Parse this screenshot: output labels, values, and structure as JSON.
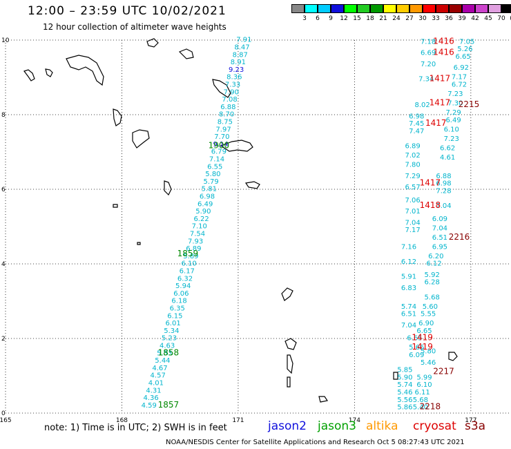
{
  "title": "12:00 – 23:59 UTC 10/02/2021",
  "subtitle": "12 hour collection of altimeter wave heights",
  "note": "note:  1) Time is in UTC;  2) SWH is in feet",
  "credit": "NOAA/NESDIS Center for Satellite Applications and Research    Oct  5 08:27:43 UTC 2021",
  "satellites": [
    {
      "name": "jason2",
      "color": "#1010dd"
    },
    {
      "name": "jason3",
      "color": "#00a000"
    },
    {
      "name": "altika",
      "color": "#ff9900"
    },
    {
      "name": "cryosat",
      "color": "#dd0000"
    },
    {
      "name": "s3a",
      "color": "#880000"
    }
  ],
  "colorbar": {
    "labels": [
      "3",
      "6",
      "9",
      "12",
      "15",
      "18",
      "21",
      "24",
      "27",
      "30",
      "33",
      "36",
      "39",
      "42",
      "45",
      "70",
      "(ft)"
    ],
    "colors": [
      "#888888",
      "#00ffff",
      "#00ccff",
      "#1010dd",
      "#00ff00",
      "#22cc22",
      "#009900",
      "#ffff00",
      "#ffcc00",
      "#ff9900",
      "#ff0000",
      "#cc0000",
      "#990000",
      "#aa00aa",
      "#cc44cc",
      "#e0a0e0",
      "#000000"
    ]
  },
  "chart_data": {
    "type": "scatter",
    "title": "12:00 – 23:59 UTC 10/02/2021",
    "subtitle": "12 hour collection of altimeter wave heights",
    "xlabel": "",
    "ylabel": "",
    "xlim": [
      165,
      178
    ],
    "ylim": [
      0,
      10
    ],
    "xticks": [
      "165",
      "168",
      "171",
      "174",
      "177"
    ],
    "yticks": [
      "0",
      "2",
      "4",
      "6",
      "8",
      "10"
    ],
    "grid": true,
    "unit": "ft",
    "series": [
      {
        "name": "jason3",
        "points": [
          [
            168.7,
            0.15,
            "4.59"
          ],
          [
            168.75,
            0.35,
            "4.36"
          ],
          [
            168.82,
            0.55,
            "4.31"
          ],
          [
            168.88,
            0.75,
            "4.01"
          ],
          [
            168.93,
            0.95,
            "4.57"
          ],
          [
            168.98,
            1.15,
            "4.67"
          ],
          [
            169.05,
            1.35,
            "5.44"
          ],
          [
            169.1,
            1.55,
            "5.53"
          ],
          [
            169.17,
            1.75,
            "4.63"
          ],
          [
            169.22,
            1.95,
            "5.23"
          ],
          [
            169.28,
            2.15,
            "5.34"
          ],
          [
            169.32,
            2.35,
            "6.01"
          ],
          [
            169.37,
            2.55,
            "6.15"
          ],
          [
            169.43,
            2.75,
            "6.35"
          ],
          [
            169.48,
            2.95,
            "6.18"
          ],
          [
            169.53,
            3.15,
            "6.06"
          ],
          [
            169.58,
            3.35,
            "5.94"
          ],
          [
            169.63,
            3.55,
            "6.32"
          ],
          [
            169.68,
            3.75,
            "6.17"
          ],
          [
            169.73,
            3.95,
            "6.10"
          ],
          [
            169.78,
            4.15,
            "5.89"
          ],
          [
            169.85,
            4.35,
            "6.89"
          ],
          [
            169.9,
            4.55,
            "7.93"
          ],
          [
            169.95,
            4.75,
            "7.54"
          ],
          [
            170.0,
            4.95,
            "7.10"
          ],
          [
            170.05,
            5.15,
            "6.22"
          ],
          [
            170.1,
            5.35,
            "5.90"
          ],
          [
            170.15,
            5.55,
            "6.49"
          ],
          [
            170.2,
            5.75,
            "6.98"
          ],
          [
            170.25,
            5.95,
            "5.81"
          ],
          [
            170.3,
            6.15,
            "5.79"
          ],
          [
            170.35,
            6.35,
            "5.80"
          ],
          [
            170.4,
            6.55,
            "6.55"
          ],
          [
            170.45,
            6.75,
            "7.14"
          ],
          [
            170.5,
            6.95,
            "6.79"
          ],
          [
            170.55,
            7.15,
            "9.14"
          ],
          [
            170.58,
            7.35,
            "7.70"
          ],
          [
            170.62,
            7.55,
            "7.97"
          ],
          [
            170.66,
            7.75,
            "8.75"
          ],
          [
            170.7,
            7.95,
            "8.70"
          ],
          [
            170.74,
            8.15,
            "6.88"
          ],
          [
            170.78,
            8.35,
            "7.08"
          ],
          [
            170.82,
            8.55,
            "7.90"
          ],
          [
            170.86,
            8.75,
            "7.33"
          ],
          [
            170.9,
            8.95,
            "8.36"
          ],
          [
            170.95,
            9.15,
            "9.23"
          ],
          [
            171.0,
            9.35,
            "8.91"
          ],
          [
            171.05,
            9.55,
            "8.87"
          ],
          [
            171.1,
            9.75,
            "8.47"
          ],
          [
            171.15,
            9.95,
            "7.91"
          ]
        ],
        "time_labels": [
          [
            169.2,
            0.15,
            "1857"
          ],
          [
            169.2,
            1.55,
            "1858"
          ],
          [
            169.7,
            4.2,
            "1859"
          ],
          [
            170.5,
            7.1,
            "1900"
          ]
        ]
      },
      {
        "name": "east-tracks",
        "points": [
          [
            175.3,
            0.1,
            "5.86"
          ],
          [
            175.3,
            0.3,
            "5.56"
          ],
          [
            175.3,
            0.5,
            "5.46"
          ],
          [
            175.3,
            0.7,
            "5.74"
          ],
          [
            175.3,
            0.9,
            "5.90"
          ],
          [
            175.3,
            1.1,
            "5.85"
          ],
          [
            175.7,
            0.1,
            "5.40"
          ],
          [
            175.7,
            0.3,
            "5.68"
          ],
          [
            175.75,
            0.5,
            "6.11"
          ],
          [
            175.8,
            0.7,
            "6.10"
          ],
          [
            175.8,
            0.9,
            "5.99"
          ],
          [
            175.9,
            1.3,
            "5.46"
          ],
          [
            175.6,
            1.5,
            "6.09"
          ],
          [
            175.6,
            1.7,
            "5.66"
          ],
          [
            175.9,
            1.6,
            "5.80"
          ],
          [
            175.55,
            1.95,
            "6.65"
          ],
          [
            175.4,
            2.3,
            "7.04"
          ],
          [
            175.4,
            2.6,
            "6.51"
          ],
          [
            175.4,
            2.8,
            "5.74"
          ],
          [
            175.4,
            3.3,
            "6.83"
          ],
          [
            175.4,
            3.6,
            "5.91"
          ],
          [
            175.4,
            4.0,
            "6.12"
          ],
          [
            175.4,
            4.4,
            "7.16"
          ],
          [
            175.5,
            4.85,
            "7.17"
          ],
          [
            175.5,
            5.05,
            "7.04"
          ],
          [
            175.5,
            5.35,
            "7.01"
          ],
          [
            175.5,
            5.65,
            "7.06"
          ],
          [
            175.5,
            6.0,
            "6.57"
          ],
          [
            175.5,
            6.3,
            "7.29"
          ],
          [
            175.5,
            6.6,
            "7.80"
          ],
          [
            175.5,
            6.85,
            "7.02"
          ],
          [
            175.5,
            7.1,
            "6.89"
          ],
          [
            175.6,
            7.5,
            "7.47"
          ],
          [
            175.6,
            7.7,
            "7.45"
          ],
          [
            175.6,
            7.9,
            "6.98"
          ],
          [
            175.75,
            8.2,
            "8.02"
          ],
          [
            175.8,
            2.15,
            "6.65"
          ],
          [
            175.85,
            2.35,
            "6.90"
          ],
          [
            175.9,
            2.6,
            "5.55"
          ],
          [
            175.95,
            2.8,
            "5.60"
          ],
          [
            176.0,
            3.05,
            "5.68"
          ],
          [
            176.0,
            3.45,
            "6.28"
          ],
          [
            176.0,
            3.65,
            "5.92"
          ],
          [
            176.05,
            3.95,
            "6.12"
          ],
          [
            176.1,
            4.15,
            "6.20"
          ],
          [
            176.2,
            4.4,
            "6.95"
          ],
          [
            176.2,
            4.65,
            "6.51"
          ],
          [
            176.2,
            4.9,
            "7.04"
          ],
          [
            176.2,
            5.15,
            "6.09"
          ],
          [
            176.3,
            5.5,
            "7.04"
          ],
          [
            176.3,
            5.9,
            "7.28"
          ],
          [
            176.3,
            6.1,
            "6.98"
          ],
          [
            176.3,
            6.3,
            "6.88"
          ],
          [
            176.4,
            6.8,
            "4.61"
          ],
          [
            176.4,
            7.05,
            "6.62"
          ],
          [
            176.5,
            7.3,
            "7.23"
          ],
          [
            176.5,
            7.55,
            "6.10"
          ],
          [
            176.55,
            7.8,
            "6.49"
          ],
          [
            176.55,
            8.0,
            "7.29"
          ],
          [
            176.6,
            8.25,
            "7.30"
          ],
          [
            176.6,
            8.5,
            "7.23"
          ],
          [
            176.7,
            8.75,
            "6.72"
          ],
          [
            176.7,
            8.95,
            "7.17"
          ],
          [
            176.75,
            9.2,
            "6.92"
          ],
          [
            176.8,
            9.5,
            "6.65"
          ],
          [
            176.85,
            9.7,
            "5.26"
          ],
          [
            176.9,
            9.9,
            "7.05"
          ],
          [
            175.9,
            9.9,
            "7.18"
          ],
          [
            175.9,
            9.6,
            "6.69"
          ],
          [
            175.9,
            9.3,
            "7.20"
          ],
          [
            175.85,
            8.9,
            "7.34"
          ]
        ],
        "time_labels": [
          [
            176.3,
            9.9,
            "1416"
          ],
          [
            176.3,
            9.6,
            "1416"
          ],
          [
            176.2,
            8.9,
            "1417"
          ],
          [
            176.2,
            8.25,
            "1417"
          ],
          [
            176.1,
            7.7,
            "1417"
          ],
          [
            175.95,
            6.1,
            "1417"
          ],
          [
            175.95,
            5.5,
            "1418"
          ],
          [
            175.75,
            1.95,
            "1419"
          ],
          [
            175.75,
            1.7,
            "1419"
          ],
          [
            176.95,
            8.2,
            "2215"
          ],
          [
            176.7,
            4.65,
            "2216"
          ],
          [
            176.3,
            1.05,
            "2217"
          ],
          [
            175.95,
            0.1,
            "2218"
          ]
        ]
      }
    ]
  }
}
